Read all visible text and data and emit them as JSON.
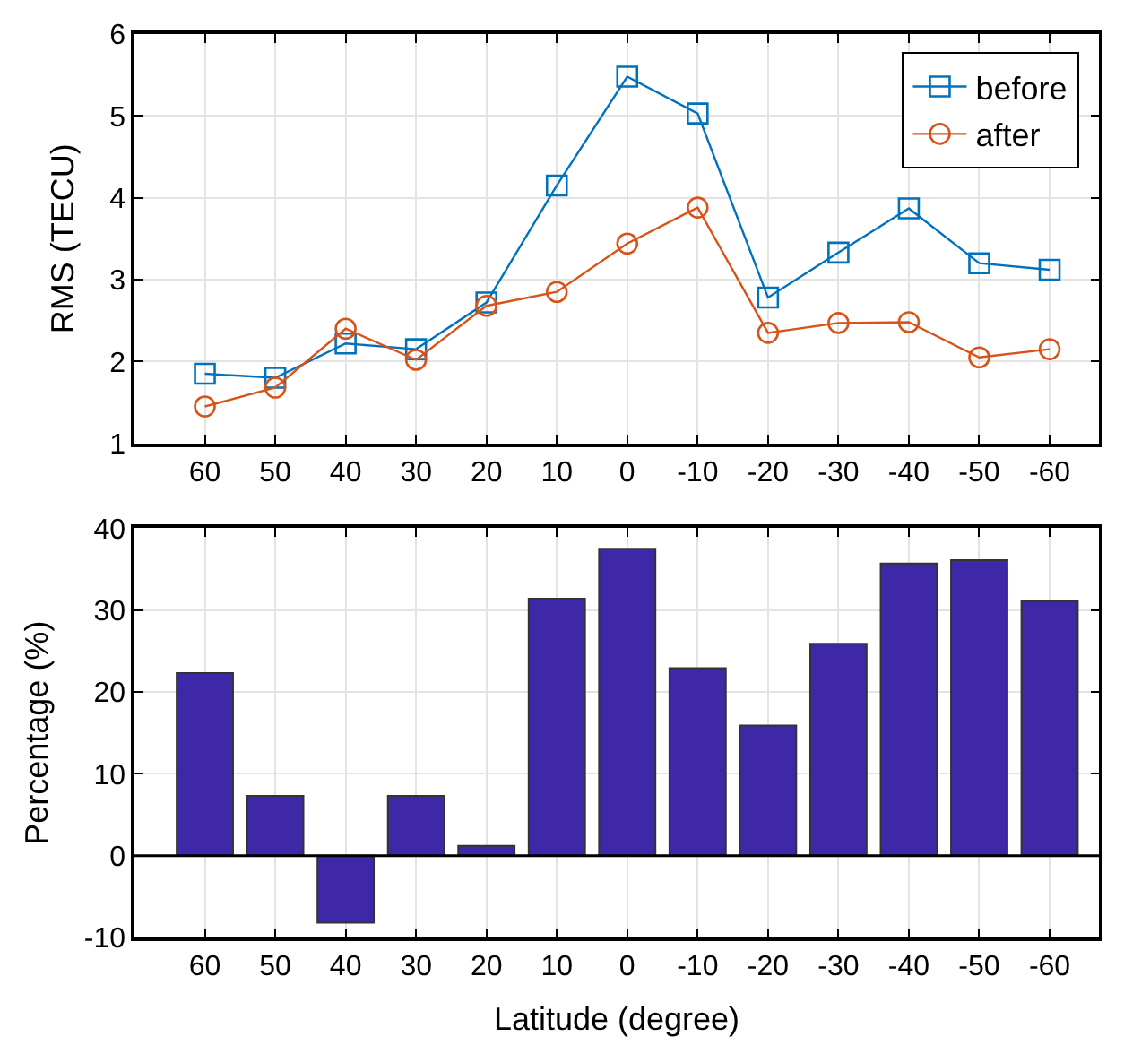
{
  "chart_data": [
    {
      "type": "line",
      "ylabel": "RMS (TECU)",
      "x": [
        60,
        50,
        40,
        30,
        20,
        10,
        0,
        -10,
        -20,
        -30,
        -40,
        -50,
        -60
      ],
      "xlim": [
        70,
        -67
      ],
      "xticks": [
        60,
        50,
        40,
        30,
        20,
        10,
        0,
        -10,
        -20,
        -30,
        -40,
        -50,
        -60
      ],
      "ylim": [
        1,
        6
      ],
      "yticks": [
        1,
        2,
        3,
        4,
        5,
        6
      ],
      "grid": true,
      "legend": "top right",
      "series": [
        {
          "name": "before",
          "color": "#0072bd",
          "marker": "square",
          "values": [
            1.85,
            1.8,
            2.22,
            2.15,
            2.72,
            4.15,
            5.48,
            5.03,
            2.78,
            3.33,
            3.87,
            3.2,
            3.12
          ]
        },
        {
          "name": "after",
          "color": "#d95319",
          "marker": "circle",
          "values": [
            1.45,
            1.68,
            2.4,
            2.02,
            2.68,
            2.85,
            3.44,
            3.88,
            2.35,
            2.47,
            2.48,
            2.05,
            2.15
          ]
        }
      ]
    },
    {
      "type": "bar",
      "xlabel": "Latitude (degree)",
      "ylabel": "Percentage (%)",
      "x": [
        60,
        50,
        40,
        30,
        20,
        10,
        0,
        -10,
        -20,
        -30,
        -40,
        -50,
        -60
      ],
      "xlim": [
        70,
        -67
      ],
      "xticks": [
        60,
        50,
        40,
        30,
        20,
        10,
        0,
        -10,
        -20,
        -30,
        -40,
        -50,
        -60
      ],
      "ylim": [
        -10,
        40
      ],
      "yticks": [
        -10,
        0,
        10,
        20,
        30,
        40
      ],
      "grid": true,
      "color": "#3f28a8",
      "values": [
        22.3,
        7.3,
        -8.2,
        7.3,
        1.2,
        31.4,
        37.5,
        22.9,
        15.9,
        25.9,
        35.7,
        36.1,
        31.1
      ]
    }
  ]
}
